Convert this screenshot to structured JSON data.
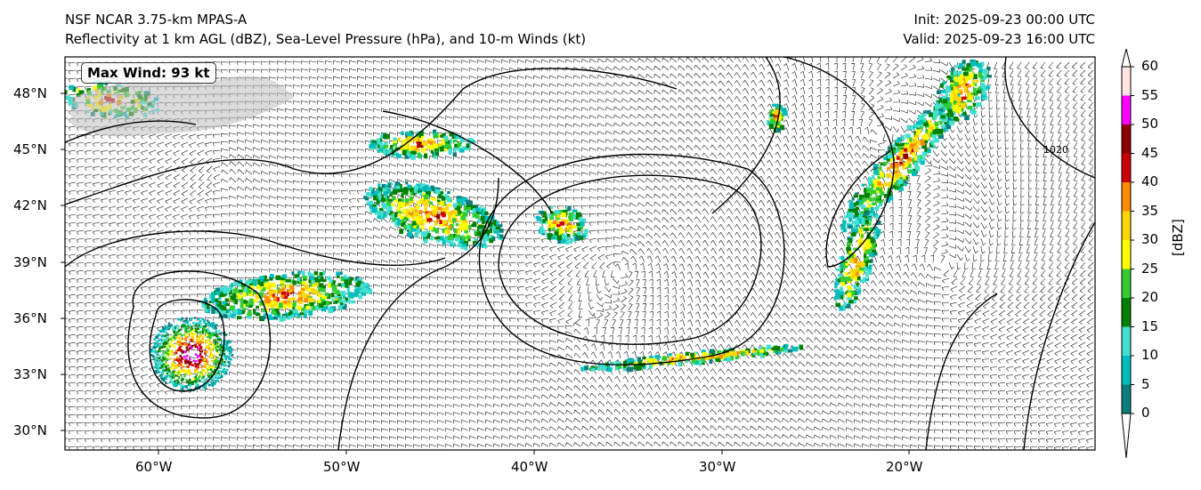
{
  "title": {
    "left_line1": "NSF NCAR 3.75-km MPAS-A",
    "left_line2": "Reflectivity at 1 km AGL (dBZ), Sea-Level Pressure (hPa), and 10-m Winds (kt)",
    "right_line1": "Init: 2025-09-23 00:00 UTC",
    "right_line2": "Valid: 2025-09-23 16:00 UTC"
  },
  "annotation": {
    "max_wind": "Max Wind: 93 kt"
  },
  "isobar_label": "1020",
  "map": {
    "lat_labels": [
      "48°N",
      "45°N",
      "42°N",
      "39°N",
      "36°N",
      "33°N",
      "30°N"
    ],
    "lon_labels": [
      "60°W",
      "50°W",
      "40°W",
      "30°W",
      "20°W"
    ]
  },
  "colorbar": {
    "unit": "[dBZ]",
    "ticks": [
      "0",
      "5",
      "10",
      "15",
      "20",
      "25",
      "30",
      "35",
      "40",
      "45",
      "50",
      "55",
      "60"
    ],
    "colors": [
      "#0d7e7e",
      "#00bebe",
      "#40e0d0",
      "#008000",
      "#32cd32",
      "#ffff00",
      "#ffd700",
      "#ff8c00",
      "#cc0000",
      "#8b0000",
      "#ff00ff",
      "#ffe4e1"
    ]
  }
}
